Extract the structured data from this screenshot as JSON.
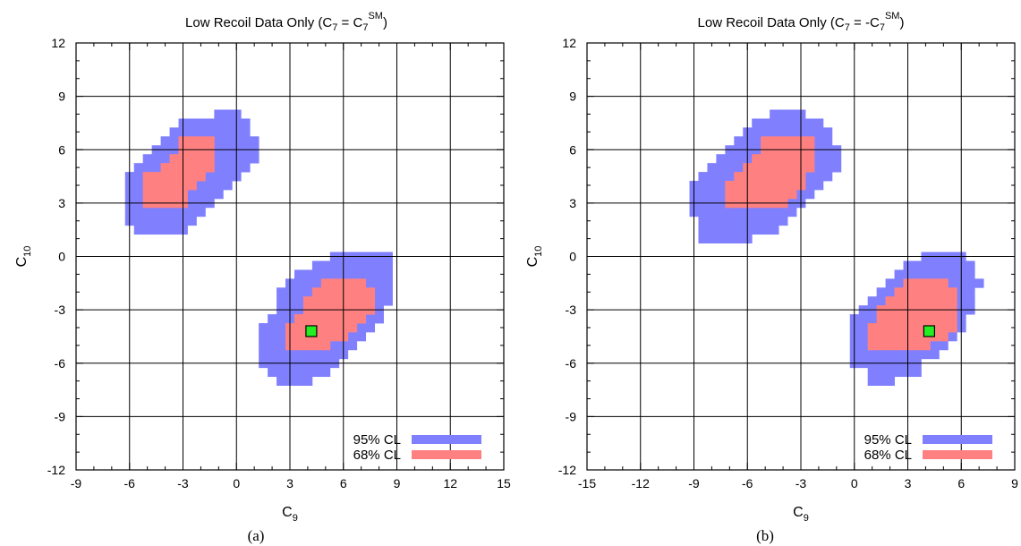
{
  "chart_data": [
    {
      "type": "heatmap",
      "title": {
        "main": "Low Recoil Data Only (C",
        "s1": "7",
        "eq": " = C",
        "s2": "7",
        "sup": "SM",
        "end": ")"
      },
      "xlabel": {
        "base": "C",
        "sub": "9"
      },
      "ylabel": {
        "base": "C",
        "sub": "10"
      },
      "xlim": [
        -9,
        15
      ],
      "ylim": [
        -12,
        12
      ],
      "xticks": [
        "-9",
        "-6",
        "-3",
        "0",
        "3",
        "6",
        "9",
        "12",
        "15"
      ],
      "yticks": [
        "-12",
        "-9",
        "-6",
        "-3",
        "0",
        "3",
        "6",
        "9",
        "12"
      ],
      "grid": true,
      "legend": {
        "position": "bottom-right",
        "entries": [
          "95% CL",
          "68% CL"
        ]
      },
      "colors": {
        "cl95": "#8080ff",
        "cl68": "#ff8080",
        "best_fit": "#22ee22"
      },
      "cell_size": 0.5,
      "regions": [
        {
          "name": "95% CL",
          "rows": [
            [
              8.0,
              -1.0,
              0.0
            ],
            [
              7.5,
              -3.0,
              0.5
            ],
            [
              7.0,
              -3.5,
              0.5
            ],
            [
              6.5,
              -4.0,
              1.0
            ],
            [
              6.0,
              -4.5,
              1.0
            ],
            [
              5.5,
              -5.0,
              1.0
            ],
            [
              5.0,
              -5.5,
              0.5
            ],
            [
              4.5,
              -6.0,
              0.0
            ],
            [
              4.0,
              -6.0,
              -0.5
            ],
            [
              3.5,
              -6.0,
              -1.0
            ],
            [
              3.0,
              -6.0,
              -1.5
            ],
            [
              2.5,
              -6.0,
              -2.0
            ],
            [
              2.0,
              -6.0,
              -2.5
            ],
            [
              1.5,
              -5.5,
              -3.0
            ],
            [
              0.0,
              5.5,
              8.5
            ],
            [
              -0.5,
              4.5,
              8.5
            ],
            [
              -1.0,
              3.5,
              8.5
            ],
            [
              -1.5,
              3.0,
              8.5
            ],
            [
              -2.0,
              2.5,
              8.5
            ],
            [
              -2.5,
              2.5,
              8.5
            ],
            [
              -3.0,
              2.5,
              8.0
            ],
            [
              -3.5,
              2.0,
              8.0
            ],
            [
              -4.0,
              1.5,
              7.5
            ],
            [
              -4.5,
              1.5,
              7.0
            ],
            [
              -5.0,
              1.5,
              6.5
            ],
            [
              -5.5,
              1.5,
              6.0
            ],
            [
              -6.0,
              1.5,
              5.5
            ],
            [
              -6.5,
              2.0,
              5.0
            ],
            [
              -7.0,
              2.5,
              4.0
            ]
          ]
        },
        {
          "name": "68% CL",
          "rows": [
            [
              6.5,
              -3.0,
              -1.5
            ],
            [
              6.0,
              -3.0,
              -1.5
            ],
            [
              5.5,
              -3.5,
              -1.5
            ],
            [
              5.0,
              -4.0,
              -1.5
            ],
            [
              4.5,
              -5.0,
              -2.0
            ],
            [
              4.0,
              -5.0,
              -2.5
            ],
            [
              3.5,
              -5.0,
              -3.0
            ],
            [
              3.0,
              -5.0,
              -3.0
            ],
            [
              -1.5,
              5.0,
              7.0
            ],
            [
              -2.0,
              4.5,
              7.5
            ],
            [
              -2.5,
              4.0,
              7.5
            ],
            [
              -3.0,
              4.0,
              7.5
            ],
            [
              -3.5,
              3.5,
              7.0
            ],
            [
              -4.0,
              3.0,
              6.5
            ],
            [
              -4.5,
              3.0,
              6.0
            ],
            [
              -5.0,
              3.0,
              5.0
            ]
          ]
        }
      ],
      "best_fit": {
        "x": 4.2,
        "y": -4.2
      },
      "panel_label": "(a)"
    },
    {
      "type": "heatmap",
      "title": {
        "main": "Low Recoil Data Only (C",
        "s1": "7",
        "eq": " = -C",
        "s2": "7",
        "sup": "SM",
        "end": ")"
      },
      "xlabel": {
        "base": "C",
        "sub": "9"
      },
      "ylabel": {
        "base": "C",
        "sub": "10"
      },
      "xlim": [
        -15,
        9
      ],
      "ylim": [
        -12,
        12
      ],
      "xticks": [
        "-15",
        "-12",
        "-9",
        "-6",
        "-3",
        "0",
        "3",
        "6",
        "9"
      ],
      "yticks": [
        "-12",
        "-9",
        "-6",
        "-3",
        "0",
        "3",
        "6",
        "9",
        "12"
      ],
      "grid": true,
      "legend": {
        "position": "bottom-right",
        "entries": [
          "95% CL",
          "68% CL"
        ]
      },
      "colors": {
        "cl95": "#8080ff",
        "cl68": "#ff8080",
        "best_fit": "#22ee22"
      },
      "cell_size": 0.5,
      "regions": [
        {
          "name": "95% CL",
          "rows": [
            [
              8.0,
              -4.5,
              -3.0
            ],
            [
              7.5,
              -5.5,
              -2.0
            ],
            [
              7.0,
              -6.0,
              -1.5
            ],
            [
              6.5,
              -6.5,
              -1.5
            ],
            [
              6.0,
              -7.0,
              -1.0
            ],
            [
              5.5,
              -7.5,
              -1.0
            ],
            [
              5.0,
              -8.0,
              -1.0
            ],
            [
              4.5,
              -8.5,
              -1.5
            ],
            [
              4.0,
              -9.0,
              -2.0
            ],
            [
              3.5,
              -9.0,
              -2.5
            ],
            [
              3.0,
              -9.0,
              -3.0
            ],
            [
              2.5,
              -9.0,
              -3.5
            ],
            [
              2.0,
              -8.5,
              -4.0
            ],
            [
              1.5,
              -8.5,
              -4.5
            ],
            [
              1.0,
              -8.5,
              -6.0
            ],
            [
              0.0,
              4.0,
              6.0
            ],
            [
              -0.5,
              3.0,
              6.5
            ],
            [
              -1.0,
              2.5,
              6.5
            ],
            [
              -1.5,
              2.0,
              7.0
            ],
            [
              -2.0,
              1.5,
              6.5
            ],
            [
              -2.5,
              1.0,
              6.5
            ],
            [
              -3.0,
              0.5,
              6.5
            ],
            [
              -3.5,
              0.0,
              6.0
            ],
            [
              -4.0,
              0.0,
              6.0
            ],
            [
              -4.5,
              0.0,
              5.5
            ],
            [
              -5.0,
              0.0,
              5.0
            ],
            [
              -5.5,
              0.0,
              4.5
            ],
            [
              -6.0,
              0.0,
              3.5
            ],
            [
              -6.5,
              1.0,
              3.5
            ],
            [
              -7.0,
              1.0,
              2.0
            ]
          ]
        },
        {
          "name": "68% CL",
          "rows": [
            [
              6.5,
              -5.0,
              -2.5
            ],
            [
              6.0,
              -5.0,
              -2.5
            ],
            [
              5.5,
              -5.5,
              -2.5
            ],
            [
              5.0,
              -6.0,
              -2.5
            ],
            [
              4.5,
              -6.5,
              -3.0
            ],
            [
              4.0,
              -7.0,
              -3.0
            ],
            [
              3.5,
              -7.0,
              -3.5
            ],
            [
              3.0,
              -7.0,
              -4.0
            ],
            [
              -1.5,
              3.0,
              5.0
            ],
            [
              -2.0,
              2.5,
              5.5
            ],
            [
              -2.5,
              2.0,
              5.5
            ],
            [
              -3.0,
              1.5,
              5.5
            ],
            [
              -3.5,
              1.5,
              5.5
            ],
            [
              -4.0,
              1.0,
              5.5
            ],
            [
              -4.5,
              1.0,
              5.0
            ],
            [
              -5.0,
              1.0,
              4.0
            ]
          ]
        }
      ],
      "best_fit": {
        "x": 4.2,
        "y": -4.2
      },
      "panel_label": "(b)"
    }
  ]
}
